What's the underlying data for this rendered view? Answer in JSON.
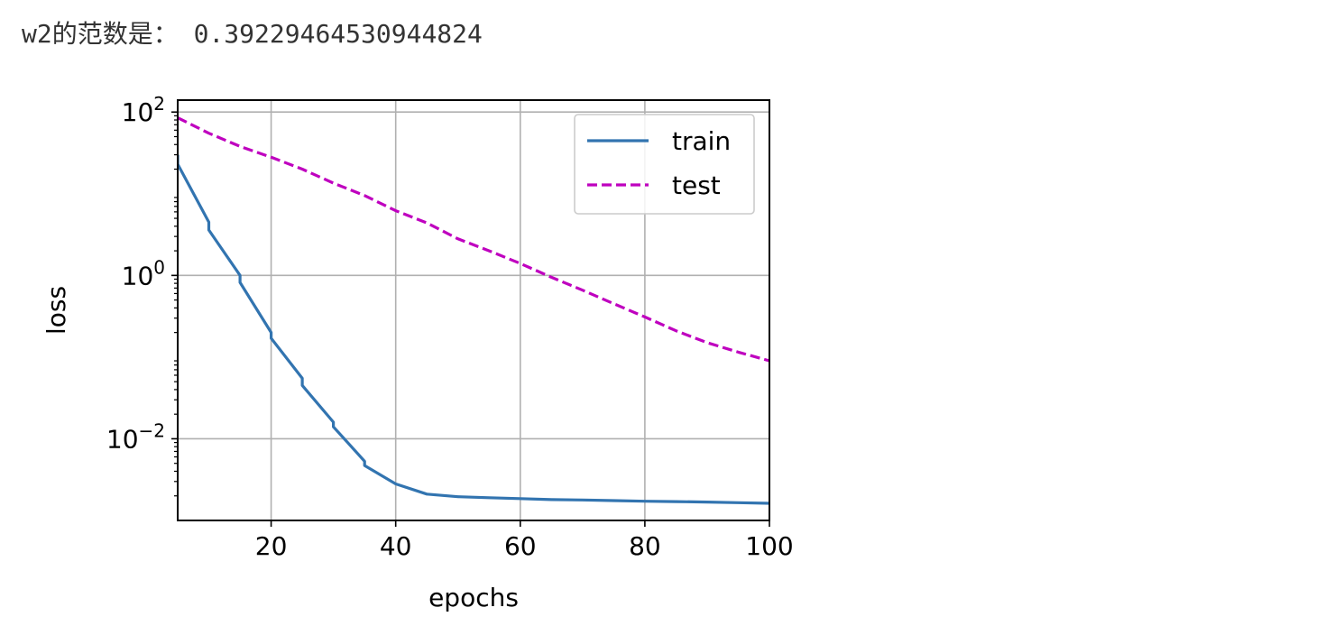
{
  "output": {
    "label": "w2的范数是：",
    "value": "0.39229464530944824"
  },
  "chart_data": {
    "type": "line",
    "xlabel": "epochs",
    "ylabel": "loss",
    "xlim": [
      5,
      100
    ],
    "ylim": [
      0.001,
      140
    ],
    "yscale": "log",
    "grid": true,
    "legend_position": "top-right",
    "x_ticks": [
      20,
      40,
      60,
      80,
      100
    ],
    "y_ticks": [
      {
        "value": 0.01,
        "base": "10",
        "exp": "−2"
      },
      {
        "value": 1,
        "base": "10",
        "exp": "0"
      },
      {
        "value": 100,
        "base": "10",
        "exp": "2"
      }
    ],
    "series": [
      {
        "name": "train",
        "color": "#3274b0",
        "dash": "solid",
        "x": [
          5,
          5,
          10,
          10,
          15,
          15,
          20,
          20,
          25,
          25,
          30,
          30,
          35,
          35,
          40,
          45,
          50,
          55,
          60,
          65,
          70,
          75,
          80,
          85,
          90,
          95,
          100
        ],
        "y": [
          30,
          23,
          4.5,
          3.6,
          1.0,
          0.82,
          0.2,
          0.17,
          0.055,
          0.045,
          0.016,
          0.014,
          0.0053,
          0.0047,
          0.0028,
          0.0021,
          0.00195,
          0.0019,
          0.00185,
          0.0018,
          0.00178,
          0.00175,
          0.00172,
          0.0017,
          0.00168,
          0.00165,
          0.00162
        ]
      },
      {
        "name": "test",
        "color": "#bf00bf",
        "dash": "dashed",
        "x": [
          5,
          10,
          15,
          20,
          25,
          30,
          35,
          40,
          45,
          50,
          55,
          60,
          65,
          70,
          75,
          80,
          85,
          90,
          95,
          100
        ],
        "y": [
          85,
          55,
          38,
          28,
          20,
          13.5,
          9.5,
          6.2,
          4.4,
          2.8,
          2.0,
          1.4,
          0.95,
          0.66,
          0.45,
          0.31,
          0.21,
          0.15,
          0.115,
          0.09
        ]
      }
    ]
  }
}
